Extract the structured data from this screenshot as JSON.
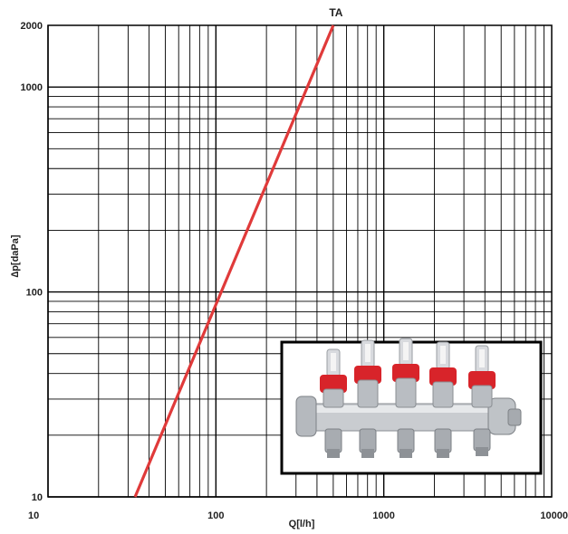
{
  "chart_data": {
    "type": "line",
    "title": "",
    "xlabel": "Q[l/h]",
    "ylabel": "∆p[daPa]",
    "x_scale": "log",
    "y_scale": "log",
    "xlim": [
      10,
      10000
    ],
    "ylim": [
      10,
      2000
    ],
    "grid": true,
    "x_ticks": [
      {
        "value": 10,
        "label": "10"
      },
      {
        "value": 100,
        "label": "100"
      },
      {
        "value": 1000,
        "label": "1000"
      },
      {
        "value": 10000,
        "label": "10000"
      }
    ],
    "y_ticks": [
      {
        "value": 10,
        "label": "10"
      },
      {
        "value": 100,
        "label": "100"
      },
      {
        "value": 1000,
        "label": "1000"
      },
      {
        "value": 2000,
        "label": "2000"
      }
    ],
    "series": [
      {
        "name": "TA",
        "color": "#e03a3a",
        "x": [
          33,
          500
        ],
        "y": [
          10,
          2000
        ]
      }
    ],
    "inset_image": "manifold-photo"
  }
}
